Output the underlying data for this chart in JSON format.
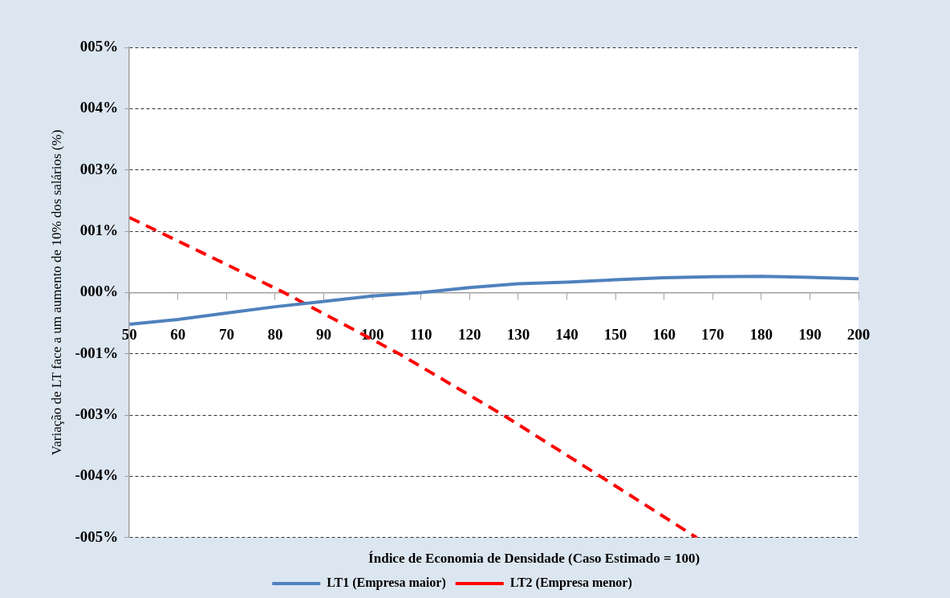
{
  "chart_data": {
    "type": "line",
    "xlabel": "Índice de Economia de Densidade (Caso Estimado = 100)",
    "ylabel": "Variação de LT face a um aumento de 10% dos salários (%)",
    "xlim": [
      50,
      200
    ],
    "xticks": [
      50,
      60,
      70,
      80,
      90,
      100,
      110,
      120,
      130,
      140,
      150,
      160,
      170,
      180,
      190,
      200
    ],
    "ylim": [
      -0.05,
      0.05
    ],
    "yticks": [
      {
        "value": 0.05,
        "label": "005%"
      },
      {
        "value": 0.0375,
        "label": "004%"
      },
      {
        "value": 0.025,
        "label": "003%"
      },
      {
        "value": 0.0125,
        "label": "001%"
      },
      {
        "value": 0,
        "label": "000%"
      },
      {
        "value": -0.0125,
        "label": "-001%"
      },
      {
        "value": -0.025,
        "label": "-003%"
      },
      {
        "value": -0.0375,
        "label": "-004%"
      },
      {
        "value": -0.05,
        "label": "-005%"
      }
    ],
    "grid": "y",
    "legend": "bottom",
    "marker": "none",
    "series": [
      {
        "name": "LT1 (Empresa maior)",
        "color": "#4f81bd",
        "line_style": "solid",
        "x": [
          50,
          60,
          70,
          80,
          90,
          100,
          110,
          120,
          130,
          140,
          150,
          160,
          170,
          180,
          190,
          200
        ],
        "values": [
          -0.0065,
          -0.0055,
          -0.0042,
          -0.0029,
          -0.0018,
          -0.0007,
          0,
          0.001,
          0.0018,
          0.0021,
          0.0026,
          0.003,
          0.0032,
          0.0033,
          0.0031,
          0.0028
        ]
      },
      {
        "name": "LT2 (Empresa menor)",
        "color": "#ff0000",
        "line_style": "dashed",
        "x": [
          50,
          60,
          70,
          81.8,
          105.5,
          126.9,
          146.9,
          166.7
        ],
        "values": [
          0.0153,
          0.0105,
          0.0057,
          0,
          -0.0125,
          -0.025,
          -0.0375,
          -0.05
        ]
      }
    ]
  }
}
